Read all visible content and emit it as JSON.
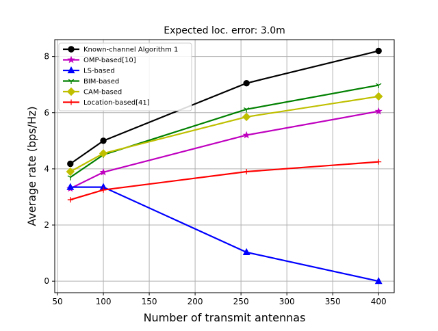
{
  "chart_data": {
    "type": "line",
    "title": "Expected loc. error: 3.0m",
    "xlabel": "Number of transmit antennas",
    "ylabel": "Average rate (bps/Hz)",
    "xlim": [
      47,
      417
    ],
    "ylim": [
      -0.41,
      8.6
    ],
    "xticks": [
      50,
      100,
      150,
      200,
      250,
      300,
      350,
      400
    ],
    "yticks": [
      0,
      2,
      4,
      6,
      8
    ],
    "grid": true,
    "legend_position": "top-left",
    "x": [
      64,
      100,
      256,
      400
    ],
    "series": [
      {
        "name": "Known-channel Algorithm 1",
        "color": "#000000",
        "marker": "circle",
        "values": [
          4.18,
          5.0,
          7.05,
          8.2
        ]
      },
      {
        "name": "OMP-based[10]",
        "color": "#bf00bf",
        "marker": "star",
        "values": [
          3.3,
          3.88,
          5.2,
          6.05
        ]
      },
      {
        "name": "LS-based",
        "color": "#0000ff",
        "marker": "triangle",
        "values": [
          3.35,
          3.35,
          1.03,
          0.0
        ]
      },
      {
        "name": "BIM-based",
        "color": "#008000",
        "marker": "tri-down",
        "values": [
          3.7,
          4.5,
          6.12,
          6.98
        ]
      },
      {
        "name": "CAM-based",
        "color": "#bfbf00",
        "marker": "diamond",
        "values": [
          3.9,
          4.55,
          5.85,
          6.58
        ]
      },
      {
        "name": "Location-based[41]",
        "color": "#ff0000",
        "marker": "plus",
        "values": [
          2.9,
          3.25,
          3.9,
          4.25
        ]
      }
    ]
  }
}
